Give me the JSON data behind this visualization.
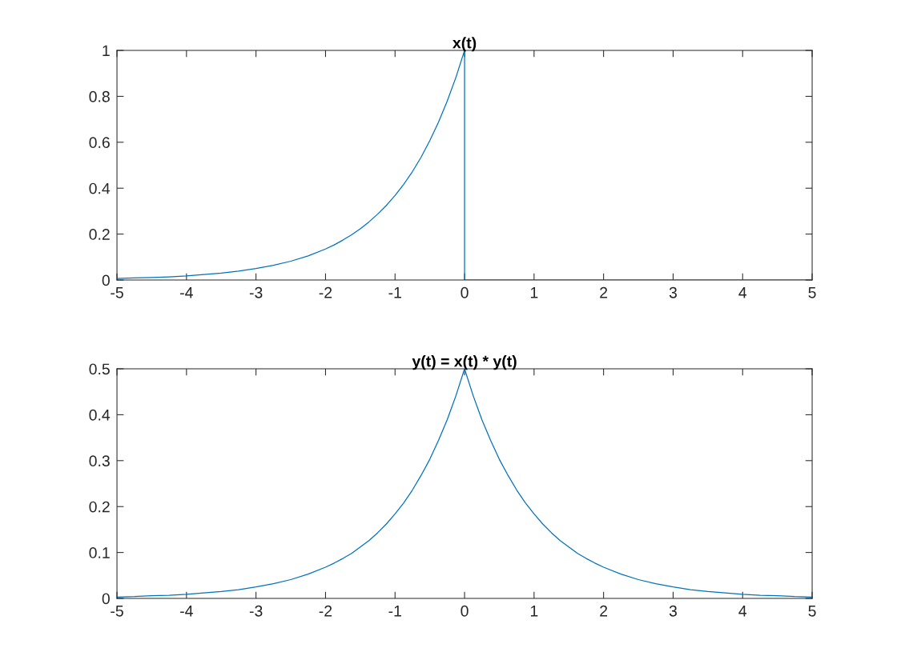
{
  "chart_data": [
    {
      "type": "line",
      "title": "x(t)",
      "x": [
        -5,
        -4.75,
        -4.5,
        -4.25,
        -4,
        -3.75,
        -3.5,
        -3.25,
        -3,
        -2.75,
        -2.5,
        -2.25,
        -2,
        -1.875,
        -1.75,
        -1.625,
        -1.5,
        -1.375,
        -1.25,
        -1.125,
        -1,
        -0.875,
        -0.75,
        -0.625,
        -0.5,
        -0.375,
        -0.25,
        -0.125,
        0,
        0,
        5
      ],
      "values": [
        0.007,
        0.009,
        0.011,
        0.014,
        0.018,
        0.024,
        0.03,
        0.039,
        0.05,
        0.064,
        0.082,
        0.105,
        0.135,
        0.153,
        0.174,
        0.197,
        0.223,
        0.253,
        0.287,
        0.325,
        0.368,
        0.417,
        0.472,
        0.535,
        0.607,
        0.687,
        0.779,
        0.882,
        1,
        0,
        0
      ],
      "color": "#0072bd",
      "xlim": [
        -5,
        5
      ],
      "xticks": [
        -5,
        -4,
        -3,
        -2,
        -1,
        0,
        1,
        2,
        3,
        4,
        5
      ],
      "ylim": [
        0,
        1
      ],
      "yticks": [
        0,
        0.2,
        0.4,
        0.6,
        0.8,
        1
      ]
    },
    {
      "type": "line",
      "title": "y(t) = x(t) * y(t)",
      "x": [
        -5,
        -4.75,
        -4.5,
        -4.25,
        -4,
        -3.75,
        -3.5,
        -3.25,
        -3,
        -2.75,
        -2.5,
        -2.25,
        -2,
        -1.875,
        -1.75,
        -1.625,
        -1.5,
        -1.375,
        -1.25,
        -1.125,
        -1,
        -0.875,
        -0.75,
        -0.625,
        -0.5,
        -0.375,
        -0.25,
        -0.125,
        0,
        0.125,
        0.25,
        0.375,
        0.5,
        0.625,
        0.75,
        0.875,
        1,
        1.125,
        1.25,
        1.375,
        1.5,
        1.625,
        1.75,
        1.875,
        2,
        2.25,
        2.5,
        2.75,
        3,
        3.25,
        3.5,
        3.75,
        4,
        4.25,
        4.5,
        4.75,
        5
      ],
      "values": [
        0.003,
        0.004,
        0.006,
        0.007,
        0.009,
        0.012,
        0.015,
        0.019,
        0.025,
        0.032,
        0.041,
        0.053,
        0.068,
        0.077,
        0.087,
        0.098,
        0.112,
        0.126,
        0.143,
        0.162,
        0.184,
        0.208,
        0.236,
        0.268,
        0.303,
        0.344,
        0.389,
        0.441,
        0.5,
        0.441,
        0.389,
        0.344,
        0.303,
        0.268,
        0.236,
        0.208,
        0.184,
        0.162,
        0.143,
        0.126,
        0.112,
        0.098,
        0.087,
        0.077,
        0.068,
        0.053,
        0.041,
        0.032,
        0.025,
        0.019,
        0.015,
        0.012,
        0.009,
        0.007,
        0.006,
        0.004,
        0.003
      ],
      "color": "#0072bd",
      "xlim": [
        -5,
        5
      ],
      "xticks": [
        -5,
        -4,
        -3,
        -2,
        -1,
        0,
        1,
        2,
        3,
        4,
        5
      ],
      "ylim": [
        0,
        0.5
      ],
      "yticks": [
        0,
        0.1,
        0.2,
        0.3,
        0.4,
        0.5
      ]
    }
  ]
}
